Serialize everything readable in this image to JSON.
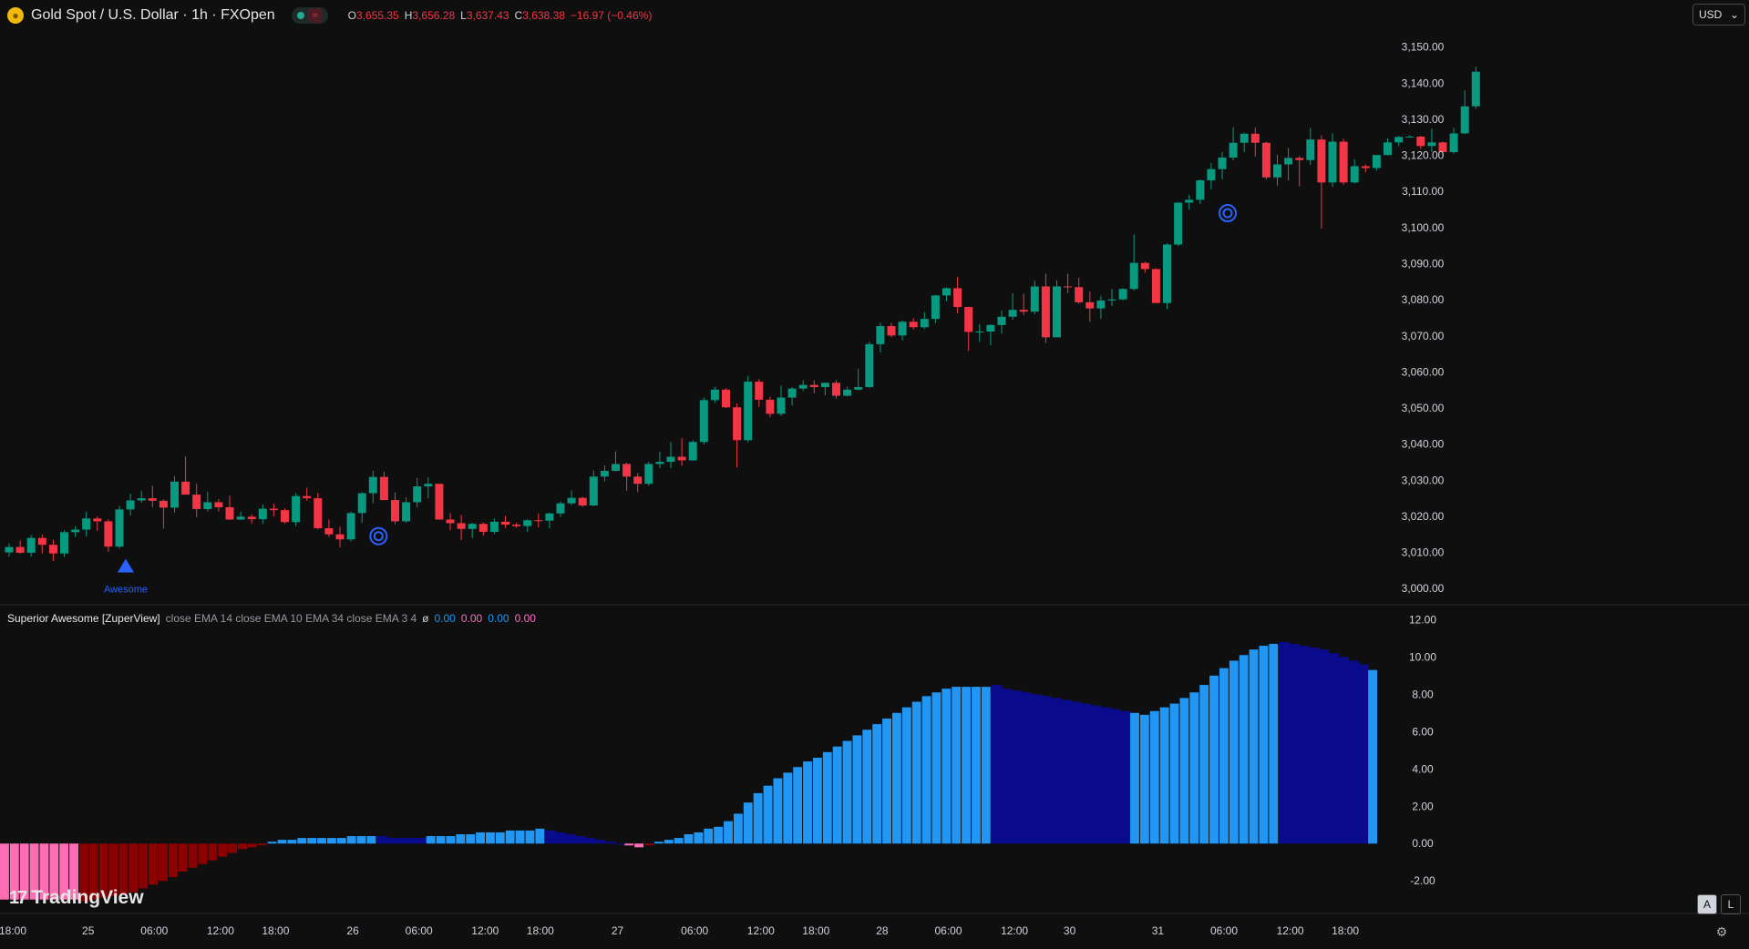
{
  "header": {
    "symbol_icon": "gold-coin-icon",
    "title": "Gold Spot / U.S. Dollar · 1h · FXOpen",
    "status_sep": "≈",
    "ohlc": {
      "o_label": "O",
      "o": "3,655.35",
      "h_label": "H",
      "h": "3,656.28",
      "l_label": "L",
      "l": "3,637.43",
      "c_label": "C",
      "c": "3,638.38",
      "change": "−16.97 (−0.46%)"
    }
  },
  "currency_button": {
    "label": "USD",
    "icon": "chevron-down-icon"
  },
  "indicator_legend": {
    "name": "Superior Awesome [ZuperView]",
    "params": "close EMA 14 close EMA 10 EMA 34 close EMA 3 4",
    "symbol": "ø",
    "values": [
      "0.00",
      "0.00",
      "0.00",
      "0.00"
    ]
  },
  "branding": {
    "logo_text": "TradingView",
    "mark": "17"
  },
  "controls": {
    "auto_label": "A",
    "log_label": "L",
    "settings_icon": "gear-icon"
  },
  "annotations": {
    "signal_label": "Awesome"
  },
  "colors": {
    "up": "#089981",
    "down": "#f23645",
    "ao_up": "#2196f3",
    "ao_up_fading": "#0a0a8c",
    "ao_down": "#8b0000",
    "ao_down_light": "#ff6eb4",
    "signal": "#2962ff"
  },
  "chart_data": [
    {
      "type": "candlestick",
      "title": "Gold Spot / U.S. Dollar · 1h · FXOpen",
      "ylim": [
        2996,
        3157
      ],
      "y_ticks": [
        "3,150.00",
        "3,140.00",
        "3,130.00",
        "3,120.00",
        "3,110.00",
        "3,100.00",
        "3,090.00",
        "3,080.00",
        "3,070.00",
        "3,060.00",
        "3,050.00",
        "3,040.00",
        "3,030.00",
        "3,020.00",
        "3,010.00",
        "3,000.00"
      ],
      "y_tick_values": [
        3150,
        3140,
        3130,
        3120,
        3110,
        3100,
        3090,
        3080,
        3070,
        3060,
        3050,
        3040,
        3030,
        3020,
        3010,
        3000
      ],
      "x_ticks": [
        "18:00",
        "25",
        "06:00",
        "12:00",
        "18:00",
        "26",
        "06:00",
        "12:00",
        "18:00",
        "27",
        "06:00",
        "12:00",
        "18:00",
        "28",
        "06:00",
        "12:00",
        "30",
        "31",
        "06:00",
        "12:00",
        "18:00"
      ],
      "candles": [
        [
          3010.0,
          3012.5,
          3008.8,
          3011.5
        ],
        [
          3011.5,
          3013.3,
          3009.6,
          3009.9
        ],
        [
          3009.9,
          3014.8,
          3008.8,
          3014.0
        ],
        [
          3014.0,
          3014.9,
          3009.7,
          3012.1
        ],
        [
          3012.1,
          3013.5,
          3007.6,
          3009.7
        ],
        [
          3009.7,
          3016.1,
          3008.8,
          3015.6
        ],
        [
          3015.6,
          3017.3,
          3014.3,
          3016.3
        ],
        [
          3016.3,
          3021.3,
          3014.4,
          3019.4
        ],
        [
          3019.4,
          3020.0,
          3016.0,
          3018.6
        ],
        [
          3018.6,
          3019.2,
          3010.2,
          3011.6
        ],
        [
          3011.6,
          3022.9,
          3011.1,
          3021.9
        ],
        [
          3021.9,
          3026.3,
          3020.2,
          3024.4
        ],
        [
          3024.4,
          3027.1,
          3023.7,
          3025.0
        ],
        [
          3025.0,
          3028.5,
          3022.5,
          3024.3
        ],
        [
          3024.3,
          3024.7,
          3016.6,
          3022.4
        ],
        [
          3022.4,
          3031.1,
          3021.0,
          3029.6
        ],
        [
          3029.6,
          3036.6,
          3026.0,
          3026.0
        ],
        [
          3026.0,
          3029.0,
          3019.8,
          3022.0
        ],
        [
          3022.0,
          3026.8,
          3021.3,
          3023.9
        ],
        [
          3023.9,
          3024.7,
          3021.3,
          3022.5
        ],
        [
          3022.5,
          3025.7,
          3019.0,
          3019.1
        ],
        [
          3019.1,
          3021.3,
          3019.0,
          3019.9
        ],
        [
          3019.9,
          3020.6,
          3018.0,
          3019.2
        ],
        [
          3019.2,
          3023.3,
          3017.9,
          3022.1
        ],
        [
          3022.1,
          3023.5,
          3020.0,
          3021.7
        ],
        [
          3021.7,
          3022.2,
          3018.0,
          3018.4
        ],
        [
          3018.4,
          3026.4,
          3017.3,
          3025.6
        ],
        [
          3025.6,
          3027.9,
          3024.3,
          3025.0
        ],
        [
          3025.0,
          3026.5,
          3016.4,
          3016.7
        ],
        [
          3016.7,
          3019.1,
          3014.3,
          3015.0
        ],
        [
          3015.0,
          3017.1,
          3011.4,
          3013.6
        ],
        [
          3013.6,
          3021.3,
          3013.0,
          3020.9
        ],
        [
          3020.9,
          3026.7,
          3018.2,
          3026.4
        ],
        [
          3026.4,
          3032.6,
          3023.6,
          3030.9
        ],
        [
          3030.9,
          3032.3,
          3024.5,
          3024.5
        ],
        [
          3024.5,
          3026.6,
          3017.8,
          3018.6
        ],
        [
          3018.6,
          3025.2,
          3018.2,
          3023.9
        ],
        [
          3023.9,
          3030.6,
          3022.5,
          3028.3
        ],
        [
          3028.3,
          3030.8,
          3025.0,
          3029.0
        ],
        [
          3029.0,
          3029.0,
          3019.1,
          3019.1
        ],
        [
          3019.1,
          3020.9,
          3016.1,
          3018.1
        ],
        [
          3018.1,
          3020.4,
          3013.4,
          3016.5
        ],
        [
          3016.5,
          3018.2,
          3014.0,
          3017.9
        ],
        [
          3017.9,
          3018.3,
          3014.6,
          3015.7
        ],
        [
          3015.7,
          3019.4,
          3015.1,
          3018.5
        ],
        [
          3018.5,
          3020.1,
          3016.8,
          3017.7
        ],
        [
          3017.7,
          3018.2,
          3016.8,
          3017.3
        ],
        [
          3017.3,
          3019.2,
          3015.7,
          3018.9
        ],
        [
          3018.9,
          3020.8,
          3016.9,
          3018.8
        ],
        [
          3018.8,
          3021.0,
          3016.7,
          3020.8
        ],
        [
          3020.8,
          3024.1,
          3019.8,
          3023.6
        ],
        [
          3023.6,
          3027.2,
          3023.1,
          3025.1
        ],
        [
          3025.1,
          3025.4,
          3022.6,
          3023.0
        ],
        [
          3023.0,
          3032.7,
          3022.8,
          3031.0
        ],
        [
          3031.0,
          3034.1,
          3029.7,
          3032.6
        ],
        [
          3032.6,
          3038.0,
          3032.4,
          3034.5
        ],
        [
          3034.5,
          3034.9,
          3027.1,
          3031.0
        ],
        [
          3031.0,
          3032.0,
          3026.7,
          3029.0
        ],
        [
          3029.0,
          3035.1,
          3028.5,
          3034.5
        ],
        [
          3034.5,
          3037.9,
          3033.3,
          3035.1
        ],
        [
          3035.1,
          3040.6,
          3033.4,
          3036.5
        ],
        [
          3036.5,
          3041.7,
          3034.0,
          3035.5
        ],
        [
          3035.5,
          3041.1,
          3035.4,
          3040.6
        ],
        [
          3040.6,
          3052.9,
          3039.9,
          3052.2
        ],
        [
          3052.2,
          3055.8,
          3051.4,
          3055.1
        ],
        [
          3055.1,
          3055.5,
          3050.0,
          3050.2
        ],
        [
          3050.2,
          3051.3,
          3033.5,
          3041.1
        ],
        [
          3041.1,
          3058.9,
          3040.5,
          3057.3
        ],
        [
          3057.3,
          3058.0,
          3050.3,
          3052.3
        ],
        [
          3052.3,
          3053.1,
          3047.4,
          3048.4
        ],
        [
          3048.4,
          3056.2,
          3047.8,
          3052.9
        ],
        [
          3052.9,
          3055.8,
          3050.7,
          3055.4
        ],
        [
          3055.4,
          3057.7,
          3054.7,
          3056.4
        ],
        [
          3056.4,
          3057.7,
          3054.1,
          3055.8
        ],
        [
          3055.8,
          3057.0,
          3053.5,
          3057.0
        ],
        [
          3057.0,
          3057.7,
          3052.6,
          3053.4
        ],
        [
          3053.4,
          3055.9,
          3053.2,
          3055.1
        ],
        [
          3055.1,
          3060.9,
          3054.9,
          3055.8
        ],
        [
          3055.8,
          3068.4,
          3055.6,
          3067.7
        ],
        [
          3067.7,
          3073.7,
          3065.4,
          3072.7
        ],
        [
          3072.7,
          3073.6,
          3069.6,
          3070.1
        ],
        [
          3070.1,
          3074.3,
          3068.7,
          3073.9
        ],
        [
          3073.9,
          3074.9,
          3071.8,
          3072.4
        ],
        [
          3072.4,
          3076.6,
          3071.9,
          3074.7
        ],
        [
          3074.7,
          3081.3,
          3073.5,
          3081.2
        ],
        [
          3081.2,
          3083.4,
          3079.6,
          3083.2
        ],
        [
          3083.2,
          3086.3,
          3076.2,
          3078.0
        ],
        [
          3078.0,
          3078.1,
          3065.8,
          3071.1
        ],
        [
          3071.1,
          3073.3,
          3068.3,
          3071.2
        ],
        [
          3071.2,
          3073.2,
          3067.4,
          3073.0
        ],
        [
          3073.0,
          3077.0,
          3070.6,
          3075.3
        ],
        [
          3075.3,
          3081.8,
          3074.5,
          3077.2
        ],
        [
          3077.2,
          3081.7,
          3075.7,
          3076.7
        ],
        [
          3076.7,
          3085.3,
          3076.0,
          3083.7
        ],
        [
          3083.7,
          3087.2,
          3068.0,
          3069.6
        ],
        [
          3069.6,
          3085.4,
          3069.7,
          3083.7
        ],
        [
          3083.7,
          3087.2,
          3081.8,
          3083.5
        ],
        [
          3083.5,
          3086.1,
          3078.8,
          3079.3
        ],
        [
          3079.3,
          3082.3,
          3073.9,
          3077.6
        ],
        [
          3077.6,
          3081.1,
          3074.7,
          3079.8
        ],
        [
          3079.8,
          3083.0,
          3078.3,
          3080.1
        ],
        [
          3080.1,
          3083.2,
          3079.8,
          3083.0
        ],
        [
          3083.0,
          3098.1,
          3082.5,
          3090.2
        ],
        [
          3090.2,
          3090.5,
          3087.5,
          3088.5
        ],
        [
          3088.5,
          3088.7,
          3079.1,
          3079.1
        ],
        [
          3079.1,
          3095.6,
          3077.4,
          3095.3
        ],
        [
          3095.3,
          3107.1,
          3094.9,
          3106.9
        ],
        [
          3106.9,
          3109.1,
          3105.0,
          3107.7
        ],
        [
          3107.7,
          3113.3,
          3106.6,
          3113.1
        ],
        [
          3113.1,
          3117.9,
          3110.6,
          3116.2
        ],
        [
          3116.2,
          3120.9,
          3113.4,
          3119.4
        ],
        [
          3119.4,
          3127.8,
          3118.6,
          3123.5
        ],
        [
          3123.5,
          3126.3,
          3120.9,
          3126.0
        ],
        [
          3126.0,
          3127.7,
          3119.7,
          3123.5
        ],
        [
          3123.5,
          3123.8,
          3113.3,
          3113.9
        ],
        [
          3113.9,
          3120.2,
          3111.5,
          3117.5
        ],
        [
          3117.5,
          3122.1,
          3113.1,
          3119.3
        ],
        [
          3119.3,
          3119.8,
          3111.4,
          3118.7
        ],
        [
          3118.7,
          3127.6,
          3117.4,
          3124.4
        ],
        [
          3124.4,
          3125.6,
          3099.7,
          3112.5
        ],
        [
          3112.5,
          3126.1,
          3111.3,
          3123.8
        ],
        [
          3123.8,
          3124.6,
          3111.8,
          3112.5
        ],
        [
          3112.5,
          3118.9,
          3112.2,
          3117.0
        ],
        [
          3117.0,
          3117.5,
          3115.3,
          3116.5
        ],
        [
          3116.5,
          3119.8,
          3115.8,
          3120.1
        ],
        [
          3120.1,
          3124.7,
          3120.0,
          3123.6
        ],
        [
          3123.6,
          3125.4,
          3122.6,
          3125.1
        ],
        [
          3125.1,
          3125.6,
          3125.1,
          3125.2
        ],
        [
          3125.2,
          3125.4,
          3121.8,
          3122.6
        ],
        [
          3122.6,
          3127.4,
          3121.0,
          3123.6
        ],
        [
          3123.6,
          3123.8,
          3119.9,
          3120.9
        ],
        [
          3120.9,
          3127.6,
          3120.5,
          3126.1
        ],
        [
          3126.1,
          3138.0,
          3125.9,
          3133.6
        ],
        [
          3133.6,
          3144.6,
          3132.9,
          3143.2
        ]
      ],
      "markers": [
        {
          "index": 10,
          "type": "triangle-up",
          "price": 3009.0,
          "label": "Awesome"
        },
        {
          "index": 33,
          "type": "circle",
          "price": 3014.5
        },
        {
          "index": 110,
          "type": "circle",
          "price": 3104.0
        }
      ]
    },
    {
      "type": "bar",
      "title": "Superior Awesome [ZuperView]",
      "ylim": [
        -3.6,
        12.7
      ],
      "y_ticks": [
        "12.00",
        "10.00",
        "8.00",
        "6.00",
        "4.00",
        "2.00",
        "0.00",
        "-2.00"
      ],
      "y_tick_values": [
        12,
        10,
        8,
        6,
        4,
        2,
        0,
        -2
      ],
      "values": [
        -3.0,
        -3.0,
        -3.0,
        -3.0,
        -3.0,
        -3.0,
        -3.0,
        -3.0,
        -3.1,
        -3.0,
        -2.9,
        -2.8,
        -2.7,
        -2.6,
        -2.4,
        -2.2,
        -2.0,
        -1.8,
        -1.5,
        -1.3,
        -1.1,
        -0.9,
        -0.7,
        -0.5,
        -0.3,
        -0.2,
        -0.1,
        0.1,
        0.2,
        0.2,
        0.3,
        0.3,
        0.3,
        0.3,
        0.3,
        0.4,
        0.4,
        0.4,
        0.4,
        0.3,
        0.3,
        0.3,
        0.3,
        0.4,
        0.4,
        0.4,
        0.5,
        0.5,
        0.6,
        0.6,
        0.6,
        0.7,
        0.7,
        0.7,
        0.8,
        0.7,
        0.6,
        0.5,
        0.4,
        0.3,
        0.2,
        0.1,
        0.0,
        -0.1,
        -0.2,
        -0.1,
        0.1,
        0.2,
        0.3,
        0.5,
        0.6,
        0.8,
        0.9,
        1.2,
        1.6,
        2.2,
        2.7,
        3.1,
        3.5,
        3.8,
        4.1,
        4.4,
        4.6,
        4.9,
        5.2,
        5.5,
        5.8,
        6.1,
        6.4,
        6.7,
        7.0,
        7.3,
        7.6,
        7.9,
        8.1,
        8.3,
        8.4,
        8.4,
        8.4,
        8.4,
        8.5,
        8.3,
        8.2,
        8.1,
        8.0,
        7.9,
        7.8,
        7.7,
        7.6,
        7.5,
        7.4,
        7.3,
        7.2,
        7.1,
        7.0,
        6.9,
        7.1,
        7.3,
        7.5,
        7.8,
        8.1,
        8.5,
        9.0,
        9.4,
        9.8,
        10.1,
        10.4,
        10.6,
        10.7,
        10.8,
        10.7,
        10.6,
        10.5,
        10.4,
        10.2,
        10.0,
        9.8,
        9.6,
        9.3
      ],
      "colors": [
        "ao_down_light",
        "ao_down_light",
        "ao_down_light",
        "ao_down_light",
        "ao_down_light",
        "ao_down_light",
        "ao_down_light",
        "ao_down_light",
        "ao_down",
        "ao_down",
        "ao_down",
        "ao_down",
        "ao_down",
        "ao_down",
        "ao_down",
        "ao_down",
        "ao_down",
        "ao_down",
        "ao_down",
        "ao_down",
        "ao_down",
        "ao_down",
        "ao_down",
        "ao_down",
        "ao_down",
        "ao_down",
        "ao_down",
        "ao_up",
        "ao_up",
        "ao_up",
        "ao_up",
        "ao_up",
        "ao_up",
        "ao_up",
        "ao_up",
        "ao_up",
        "ao_up",
        "ao_up",
        "ao_up_fading",
        "ao_up_fading",
        "ao_up_fading",
        "ao_up_fading",
        "ao_up_fading",
        "ao_up",
        "ao_up",
        "ao_up",
        "ao_up",
        "ao_up",
        "ao_up",
        "ao_up",
        "ao_up",
        "ao_up",
        "ao_up",
        "ao_up",
        "ao_up",
        "ao_up_fading",
        "ao_up_fading",
        "ao_up_fading",
        "ao_up_fading",
        "ao_up_fading",
        "ao_up_fading",
        "ao_up_fading",
        "ao_up_fading",
        "ao_down_light",
        "ao_down_light",
        "ao_down",
        "ao_up",
        "ao_up",
        "ao_up",
        "ao_up",
        "ao_up",
        "ao_up",
        "ao_up",
        "ao_up",
        "ao_up",
        "ao_up",
        "ao_up",
        "ao_up",
        "ao_up",
        "ao_up",
        "ao_up",
        "ao_up",
        "ao_up",
        "ao_up",
        "ao_up",
        "ao_up",
        "ao_up",
        "ao_up",
        "ao_up",
        "ao_up",
        "ao_up",
        "ao_up",
        "ao_up",
        "ao_up",
        "ao_up",
        "ao_up",
        "ao_up",
        "ao_up",
        "ao_up",
        "ao_up",
        "ao_up_fading",
        "ao_up_fading",
        "ao_up_fading",
        "ao_up_fading",
        "ao_up_fading",
        "ao_up_fading",
        "ao_up_fading",
        "ao_up_fading",
        "ao_up_fading",
        "ao_up_fading",
        "ao_up_fading",
        "ao_up_fading",
        "ao_up_fading",
        "ao_up_fading",
        "ao_up",
        "ao_up",
        "ao_up",
        "ao_up",
        "ao_up",
        "ao_up",
        "ao_up",
        "ao_up",
        "ao_up",
        "ao_up",
        "ao_up",
        "ao_up",
        "ao_up",
        "ao_up",
        "ao_up",
        "ao_up_fading",
        "ao_up_fading",
        "ao_up_fading",
        "ao_up_fading",
        "ao_up_fading",
        "ao_up_fading",
        "ao_up_fading",
        "ao_up_fading",
        "ao_up_fading"
      ]
    }
  ]
}
